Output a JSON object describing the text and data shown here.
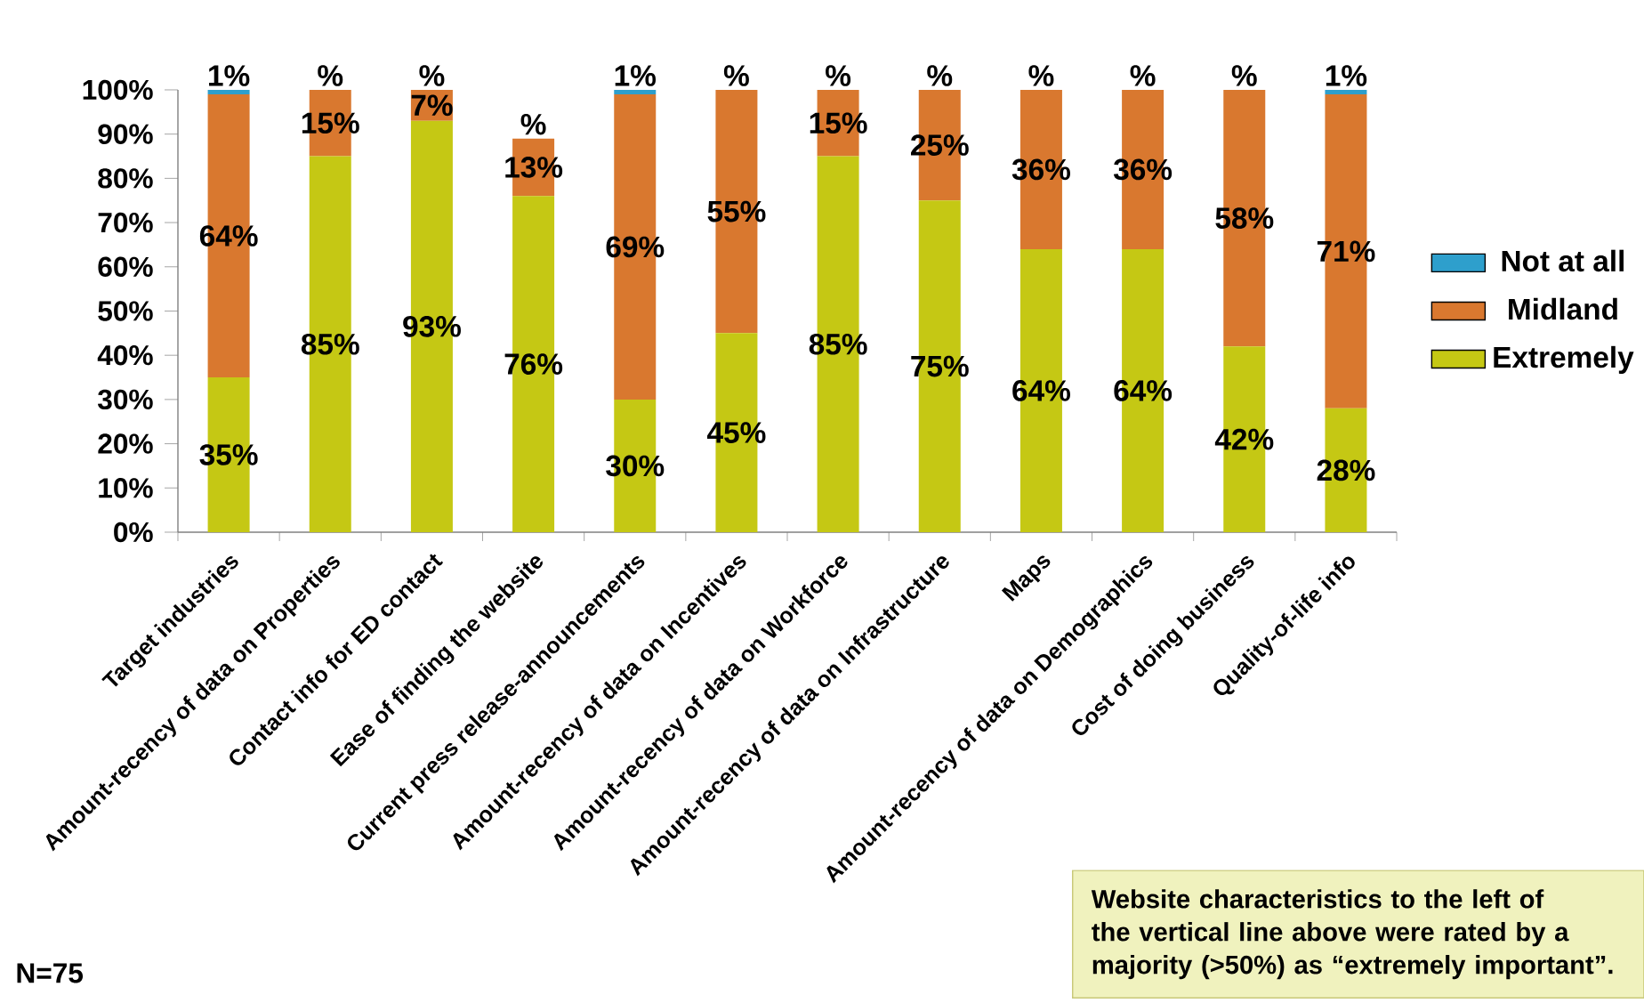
{
  "chart_data": {
    "type": "bar",
    "stacked": true,
    "legend": "right",
    "categories": [
      "Target industries",
      "Amount-recency of data on Properties",
      "Contact info for ED contact",
      "Ease of finding the website",
      "Current press release-announcements",
      "Amount-recency of data on Incentives",
      "Amount-recency of data on Workforce",
      "Amount-recency of data on Infrastructure",
      "Maps",
      "Amount-recency of data on Demographics",
      "Cost of doing business",
      "Quality-of-life info"
    ],
    "series": [
      {
        "name": "Extremely",
        "color": "#c5c814",
        "values": [
          35,
          85,
          93,
          76,
          30,
          45,
          85,
          75,
          64,
          64,
          42,
          28
        ],
        "value_labels": [
          "35%",
          "85%",
          "93%",
          "76%",
          "30%",
          "45%",
          "85%",
          "75%",
          "64%",
          "64%",
          "42%",
          "28%"
        ]
      },
      {
        "name": "Midland",
        "color": "#d9782f",
        "values": [
          64,
          15,
          7,
          13,
          69,
          55,
          15,
          25,
          36,
          36,
          58,
          71
        ],
        "value_labels": [
          "64%",
          "15%",
          "7%",
          "13%",
          "69%",
          "55%",
          "15%",
          "25%",
          "36%",
          "36%",
          "58%",
          "71%"
        ]
      },
      {
        "name": "Not at all",
        "color": "#2e9fcc",
        "values": [
          1,
          0,
          0,
          0,
          1,
          0,
          0,
          0,
          0,
          0,
          0,
          1
        ],
        "value_labels": [
          "1%",
          "%",
          "%",
          "%",
          "1%",
          "%",
          "%",
          "%",
          "%",
          "%",
          "%",
          "1%"
        ]
      }
    ],
    "ylim": [
      0,
      100
    ],
    "yticks": [
      {
        "value": 0,
        "label": "0%"
      },
      {
        "value": 10,
        "label": "10%"
      },
      {
        "value": 20,
        "label": "20%"
      },
      {
        "value": 30,
        "label": "30%"
      },
      {
        "value": 40,
        "label": "40%"
      },
      {
        "value": 50,
        "label": "50%"
      },
      {
        "value": 60,
        "label": "60%"
      },
      {
        "value": 70,
        "label": "70%"
      },
      {
        "value": 80,
        "label": "80%"
      },
      {
        "value": 90,
        "label": "90%"
      },
      {
        "value": 100,
        "label": "100%"
      }
    ],
    "annotations": [
      "N=75",
      "Website characteristics to the left of the vertical line above were rated by a majority (>50%) as “extremely important”."
    ]
  }
}
